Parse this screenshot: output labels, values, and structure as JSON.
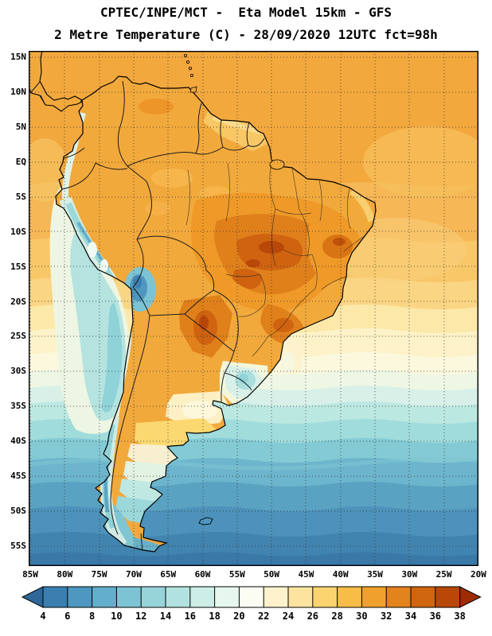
{
  "header": {
    "line1": "CPTEC/INPE/MCT -  Eta Model 15km - GFS",
    "line2": "2 Metre Temperature (C) - 28/09/2020 12UTC fct=98h"
  },
  "map": {
    "lat_labels": [
      "15N",
      "10N",
      "5N",
      "EQ",
      "5S",
      "10S",
      "15S",
      "20S",
      "25S",
      "30S",
      "35S",
      "40S",
      "45S",
      "50S",
      "55S"
    ],
    "lon_labels": [
      "85W",
      "80W",
      "75W",
      "70W",
      "65W",
      "60W",
      "55W",
      "50W",
      "45W",
      "40W",
      "35W",
      "30W",
      "25W",
      "20W"
    ]
  },
  "colorbar": {
    "tick_labels": [
      "4",
      "6",
      "8",
      "10",
      "12",
      "14",
      "16",
      "18",
      "20",
      "22",
      "24",
      "26",
      "28",
      "30",
      "32",
      "34",
      "36",
      "38"
    ],
    "segment_colors": [
      "#2e6898",
      "#3b7fb0",
      "#4e97c0",
      "#63aecb",
      "#7cc3d4",
      "#97d4da",
      "#b2e2df",
      "#cceee6",
      "#e6f7ef",
      "#fbfdf3",
      "#fdf2cb",
      "#fce49e",
      "#fbd470",
      "#f7bd47",
      "#f0a02d",
      "#e3831c",
      "#d0650f",
      "#b94708",
      "#9d2c03"
    ]
  },
  "chart_data": {
    "type": "heatmap",
    "title": "2 Metre Temperature (C)",
    "region": "South America",
    "lat_range": [
      "15N",
      "55S"
    ],
    "lon_range": [
      "85W",
      "20W"
    ],
    "grid_interval_deg": 5,
    "scale_ticks_c": [
      4,
      6,
      8,
      10,
      12,
      14,
      16,
      18,
      20,
      22,
      24,
      26,
      28,
      30,
      32,
      34,
      36,
      38
    ],
    "scale_colors": [
      "#2e6898",
      "#3b7fb0",
      "#4e97c0",
      "#63aecb",
      "#7cc3d4",
      "#97d4da",
      "#b2e2df",
      "#cceee6",
      "#e6f7ef",
      "#fbfdf3",
      "#fdf2cb",
      "#fce49e",
      "#fbd470",
      "#f7bd47",
      "#f0a02d",
      "#e3831c",
      "#d0650f",
      "#b94708",
      "#9d2c03"
    ],
    "legend_position": "bottom"
  }
}
